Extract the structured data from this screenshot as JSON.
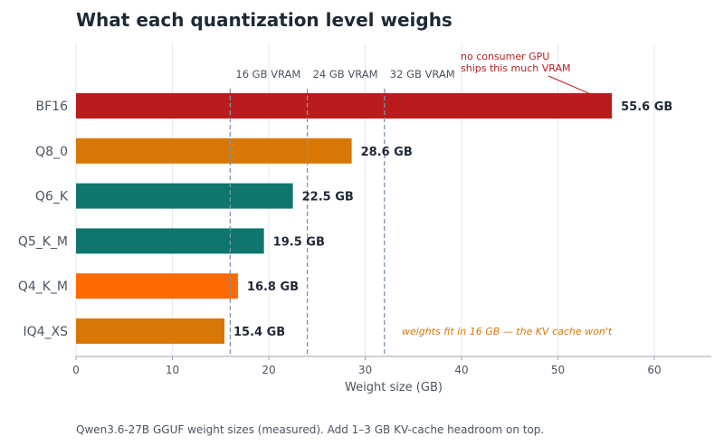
{
  "title": "What each quantization level weighs",
  "caption": "Qwen3.6-27B GGUF weight sizes (measured). Add 1–3 GB KV-cache headroom on top.",
  "colors": {
    "bf16": "#b91c1c",
    "q8": "#d97706",
    "q6": "#0f766e",
    "q4": "#ff6a00",
    "refline": "#7f93ad",
    "axis_text": "#4b5563",
    "annotation_red": "#b91c1c",
    "annotation_orange": "#d97706"
  },
  "chart_data": {
    "type": "bar",
    "orientation": "horizontal",
    "categories": [
      "BF16",
      "Q8_0",
      "Q6_K",
      "Q5_K_M",
      "Q4_K_M",
      "IQ4_XS"
    ],
    "values": [
      55.6,
      28.6,
      22.5,
      19.5,
      16.8,
      15.4
    ],
    "value_labels": [
      "55.6 GB",
      "28.6 GB",
      "22.5 GB",
      "19.5 GB",
      "16.8 GB",
      "15.4 GB"
    ],
    "bar_colors": [
      "#b91c1c",
      "#d97706",
      "#0f766e",
      "#0f766e",
      "#ff6a00",
      "#d97706"
    ],
    "xlabel": "Weight size (GB)",
    "ylabel": "",
    "xlim": [
      0,
      66
    ],
    "xticks": [
      0,
      10,
      20,
      30,
      40,
      50,
      60
    ],
    "grid": "vertical",
    "reference_lines": [
      {
        "x": 16,
        "label": "16 GB VRAM"
      },
      {
        "x": 24,
        "label": "24 GB VRAM"
      },
      {
        "x": 32,
        "label": "32 GB VRAM"
      }
    ],
    "annotations": [
      {
        "text_lines": [
          "no consumer GPU",
          "ships this much VRAM"
        ],
        "target_category": "BF16",
        "target_x": 53
      },
      {
        "text": "weights fit in 16 GB — the KV cache won't",
        "x": 33.8,
        "category": "IQ4_XS"
      }
    ]
  }
}
